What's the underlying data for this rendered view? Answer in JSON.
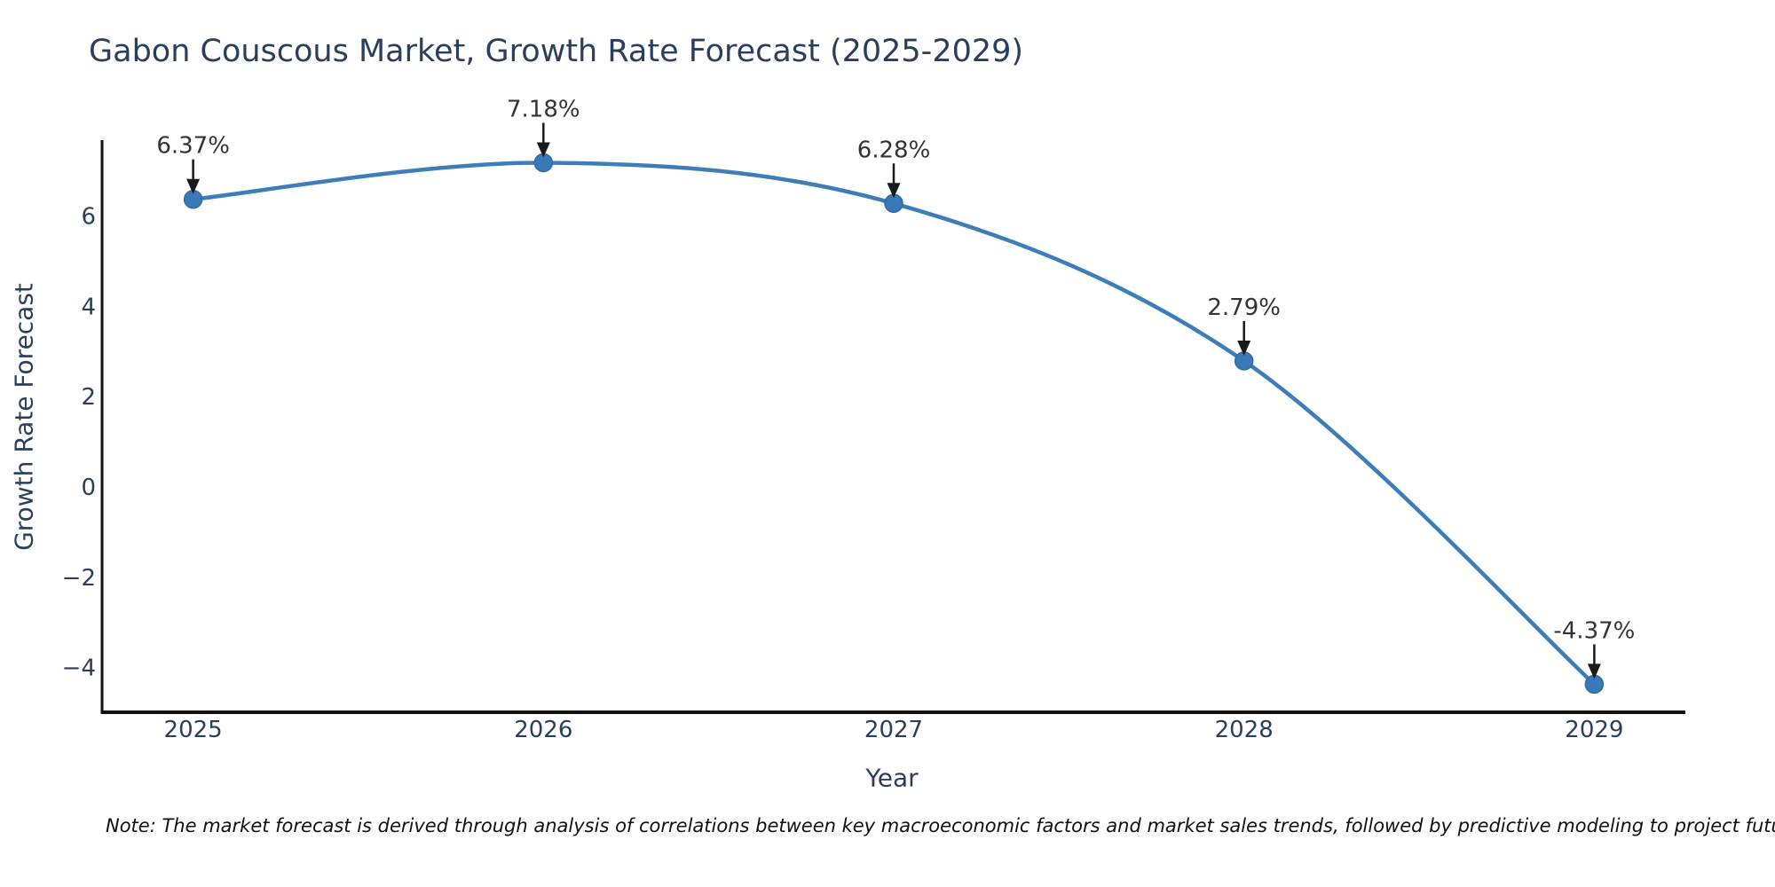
{
  "chart": {
    "title": "Gabon Couscous Market, Growth Rate Forecast (2025-2029)",
    "xlabel": "Year",
    "ylabel": "Growth Rate Forecast",
    "note": "Note: The market forecast is derived through analysis of correlations between key macroeconomic factors and market sales trends, followed by predictive modeling to project future sales"
  },
  "chart_data": {
    "type": "line",
    "line_shape": "spline",
    "title": "Gabon Couscous Market, Growth Rate Forecast (2025-2029)",
    "xlabel": "Year",
    "ylabel": "Growth Rate Forecast",
    "x": [
      2025,
      2026,
      2027,
      2028,
      2029
    ],
    "values": [
      6.37,
      7.18,
      6.28,
      2.79,
      -4.37
    ],
    "point_labels": [
      "6.37%",
      "7.18%",
      "6.28%",
      "2.79%",
      "-4.37%"
    ],
    "xlim": [
      2024.74,
      2029.26
    ],
    "ylim": [
      -4.99,
      7.68
    ],
    "xticks": {
      "values": [
        2025,
        2026,
        2027,
        2028,
        2029
      ],
      "labels": [
        "2025",
        "2026",
        "2027",
        "2028",
        "2029"
      ]
    },
    "yticks": {
      "values": [
        6,
        4,
        2,
        0,
        -2,
        -4
      ],
      "labels": [
        "6",
        "4",
        "2",
        "0",
        "−2",
        "−4"
      ]
    },
    "grid": false,
    "legend": false,
    "colors": {
      "line": "#3d7db8",
      "marker_fill": "#3a79b8",
      "marker_edge": "#2e6da4",
      "arrow": "#1a1a1a",
      "annotation_text": "#333333",
      "tick_text": "#2a3f5f",
      "title_text": "#2a3f5f",
      "spine": "#111111"
    }
  }
}
